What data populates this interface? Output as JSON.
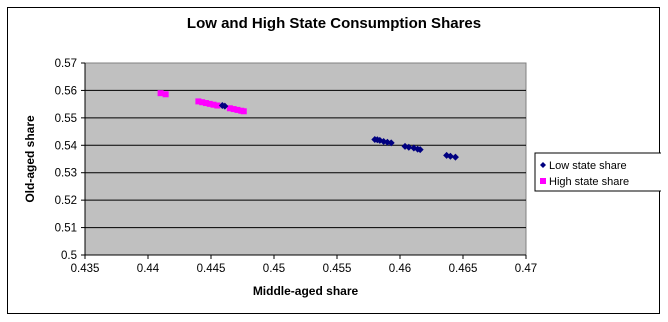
{
  "chart_data": {
    "type": "scatter",
    "title": "Low and High State Consumption Shares",
    "xlabel": "Middle-aged share",
    "ylabel": "Old-aged share",
    "xlim": [
      0.435,
      0.47
    ],
    "ylim": [
      0.5,
      0.57
    ],
    "x_ticks": [
      "0.435",
      "0.44",
      "0.445",
      "0.45",
      "0.455",
      "0.46",
      "0.465",
      "0.47"
    ],
    "y_ticks": [
      "0.5",
      "0.51",
      "0.52",
      "0.53",
      "0.54",
      "0.55",
      "0.56",
      "0.57"
    ],
    "grid": "horizontal",
    "plot_background": "#c0c0c0",
    "legend_position": "right",
    "series": [
      {
        "name": "Low state share",
        "color": "#000080",
        "marker": "diamond",
        "points": [
          [
            0.4459,
            0.5545
          ],
          [
            0.4461,
            0.5543
          ],
          [
            0.458,
            0.5421
          ],
          [
            0.4582,
            0.542
          ],
          [
            0.4584,
            0.5418
          ],
          [
            0.4587,
            0.5414
          ],
          [
            0.459,
            0.5411
          ],
          [
            0.4593,
            0.5409
          ],
          [
            0.4604,
            0.5396
          ],
          [
            0.4607,
            0.5393
          ],
          [
            0.4611,
            0.539
          ],
          [
            0.4614,
            0.5386
          ],
          [
            0.4616,
            0.5384
          ],
          [
            0.4637,
            0.5363
          ],
          [
            0.464,
            0.536
          ],
          [
            0.4644,
            0.5357
          ]
        ]
      },
      {
        "name": "High state share",
        "color": "#ff00ff",
        "marker": "square",
        "points": [
          [
            0.441,
            0.559
          ],
          [
            0.4414,
            0.5586
          ],
          [
            0.444,
            0.556
          ],
          [
            0.4443,
            0.5557
          ],
          [
            0.4446,
            0.5554
          ],
          [
            0.4449,
            0.5551
          ],
          [
            0.4452,
            0.5548
          ],
          [
            0.4455,
            0.5545
          ],
          [
            0.4465,
            0.5535
          ],
          [
            0.4468,
            0.5532
          ],
          [
            0.4471,
            0.5529
          ],
          [
            0.4474,
            0.5526
          ],
          [
            0.4476,
            0.5524
          ]
        ]
      }
    ]
  }
}
